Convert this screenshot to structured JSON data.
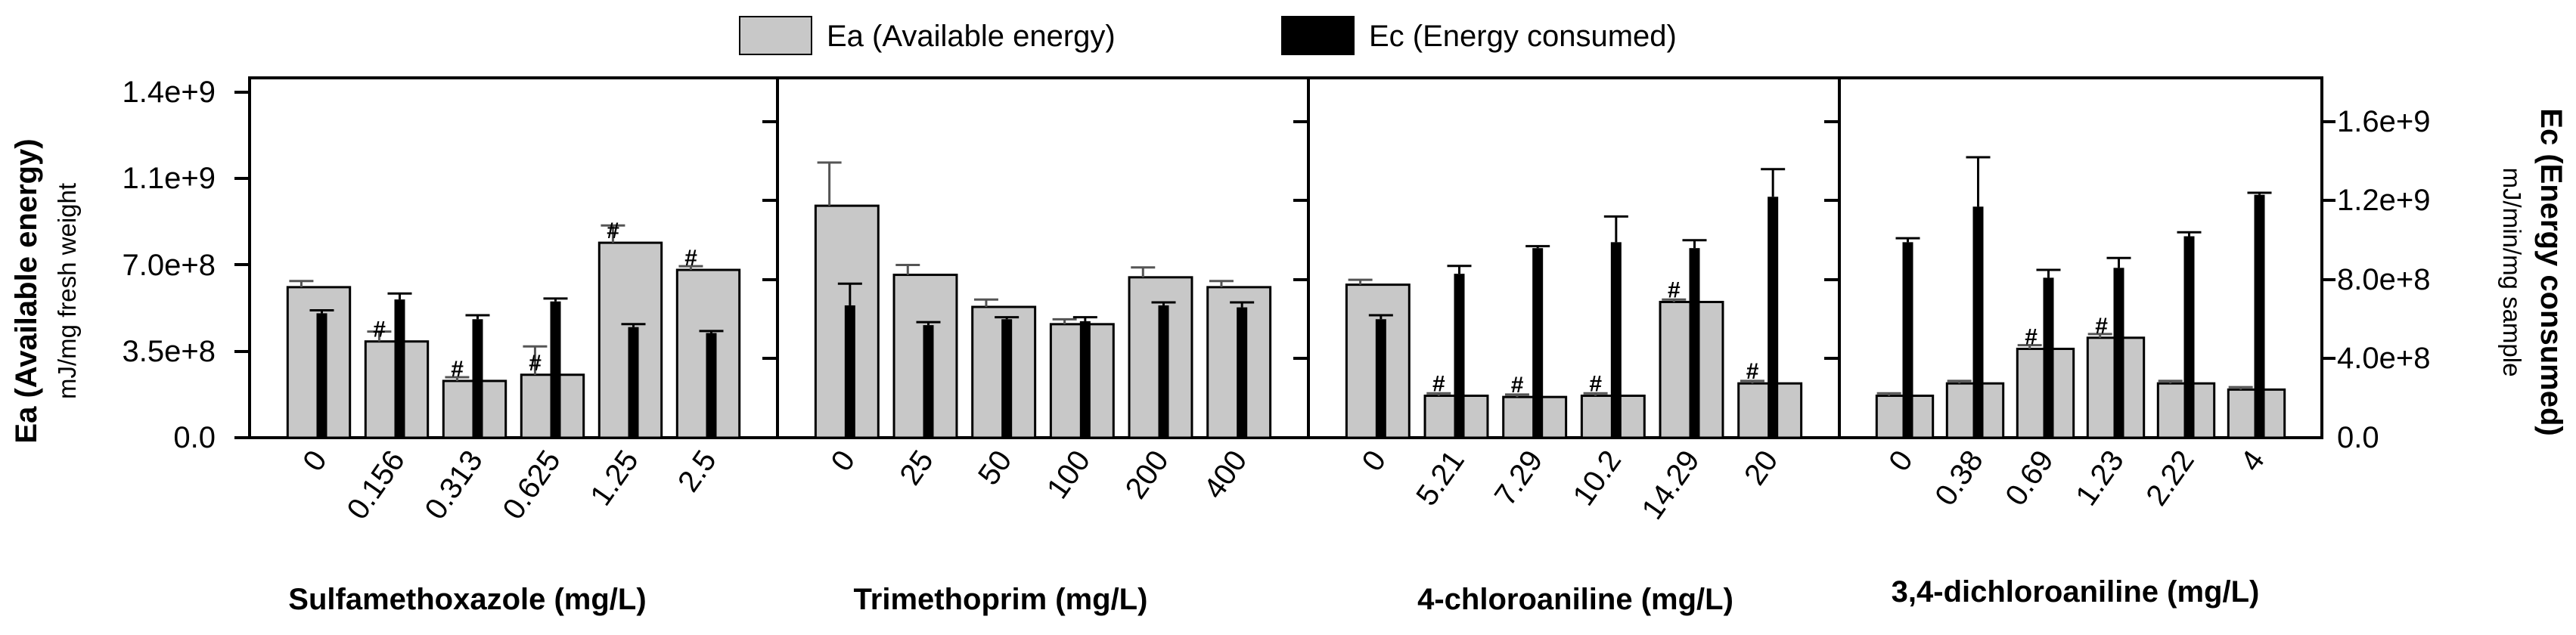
{
  "figure": {
    "legend": [
      {
        "label": "Ea (Available energy)",
        "color": "#c8c8c8"
      },
      {
        "label": "Ec (Energy consumed)",
        "color": "#000000"
      }
    ],
    "left_axis": {
      "title": "Ea (Available energy)",
      "subtitle": "mJ/mg fresh weight",
      "ticks": [
        "0.0",
        "3.5e+8",
        "7.0e+8",
        "1.1e+9",
        "1.4e+9"
      ],
      "min": 0,
      "max": 1400000000
    },
    "right_axis": {
      "title": "Ec (Energy consumed)",
      "subtitle": "mJ/min/mg sample",
      "ticks": [
        "0.0",
        "4.0e+8",
        "8.0e+8",
        "1.2e+9",
        "1.6e+9"
      ],
      "min": 0,
      "max": 1750000000
    }
  },
  "chart_data": [
    {
      "type": "bar",
      "xlabel": "Sulfamethoxazole (mg/L)",
      "categories": [
        "0",
        "0.156",
        "0.313",
        "0.625",
        "1.25",
        "2.5"
      ],
      "series": [
        {
          "name": "Ea (Available energy)",
          "values": [
            610000000,
            390000000,
            230000000,
            255000000,
            790000000,
            680000000
          ],
          "errors": [
            25000000,
            40000000,
            15000000,
            115000000,
            70000000,
            15000000
          ],
          "marks": [
            "",
            "#",
            "#",
            "#",
            "#",
            "#"
          ]
        },
        {
          "name": "Ec (Energy consumed)",
          "values": [
            630000000,
            700000000,
            600000000,
            690000000,
            560000000,
            530000000
          ],
          "errors": [
            15000000,
            30000000,
            20000000,
            15000000,
            15000000,
            10000000
          ],
          "marks": [
            "",
            "",
            "",
            "",
            "",
            ""
          ]
        }
      ]
    },
    {
      "type": "bar",
      "xlabel": "Trimethoprim (mg/L)",
      "categories": [
        "0",
        "25",
        "50",
        "100",
        "200",
        "400"
      ],
      "series": [
        {
          "name": "Ea (Available energy)",
          "values": [
            940000000,
            660000000,
            530000000,
            460000000,
            650000000,
            610000000
          ],
          "errors": [
            175000000,
            40000000,
            30000000,
            20000000,
            40000000,
            25000000
          ],
          "marks": [
            "",
            "",
            "",
            "",
            "",
            ""
          ]
        },
        {
          "name": "Ec (Energy consumed)",
          "values": [
            670000000,
            570000000,
            600000000,
            590000000,
            670000000,
            660000000
          ],
          "errors": [
            110000000,
            15000000,
            10000000,
            20000000,
            15000000,
            25000000
          ],
          "marks": [
            "",
            "",
            "",
            "",
            "",
            ""
          ]
        }
      ]
    },
    {
      "type": "bar",
      "xlabel": "4-chloroaniline (mg/L)",
      "categories": [
        "0",
        "5.21",
        "7.29",
        "10.2",
        "14.29",
        "20"
      ],
      "series": [
        {
          "name": "Ea (Available energy)",
          "values": [
            620000000,
            170000000,
            165000000,
            170000000,
            550000000,
            220000000
          ],
          "errors": [
            20000000,
            10000000,
            10000000,
            10000000,
            10000000,
            10000000
          ],
          "marks": [
            "",
            "#",
            "#",
            "#",
            "#",
            "#"
          ]
        },
        {
          "name": "Ec (Energy consumed)",
          "values": [
            600000000,
            830000000,
            960000000,
            990000000,
            960000000,
            1220000000
          ],
          "errors": [
            20000000,
            40000000,
            10000000,
            130000000,
            40000000,
            140000000
          ],
          "marks": [
            "",
            "",
            "",
            "",
            "",
            ""
          ]
        }
      ]
    },
    {
      "type": "bar",
      "xlabel": "3,4-dichloroaniline (mg/L)",
      "categories": [
        "0",
        "0.38",
        "0.69",
        "1.23",
        "2.22",
        "4"
      ],
      "series": [
        {
          "name": "Ea (Available energy)",
          "values": [
            170000000,
            220000000,
            360000000,
            405000000,
            220000000,
            195000000
          ],
          "errors": [
            10000000,
            10000000,
            15000000,
            15000000,
            10000000,
            10000000
          ],
          "marks": [
            "",
            "",
            "#",
            "#",
            "",
            ""
          ]
        },
        {
          "name": "Ec (Energy consumed)",
          "values": [
            990000000,
            1170000000,
            810000000,
            860000000,
            1020000000,
            1230000000
          ],
          "errors": [
            20000000,
            250000000,
            40000000,
            50000000,
            20000000,
            10000000
          ],
          "marks": [
            "",
            "",
            "",
            "",
            "",
            ""
          ]
        }
      ]
    }
  ]
}
